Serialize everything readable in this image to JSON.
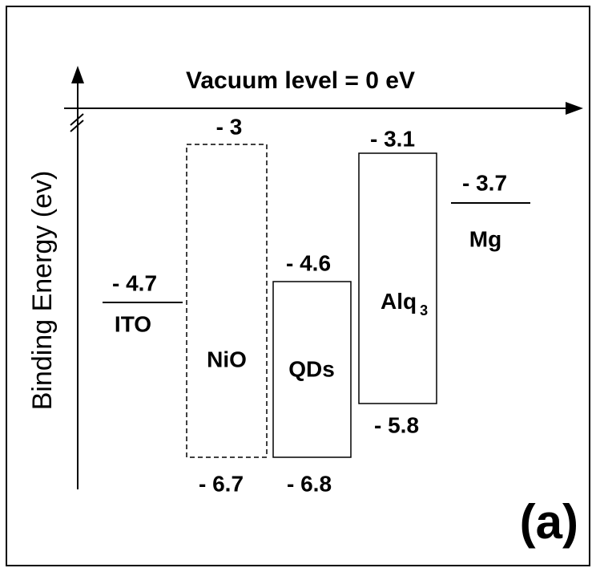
{
  "title": "Vacuum level = 0 eV",
  "y_axis_label": "Binding Energy (ev)",
  "materials": [
    {
      "name": "ITO",
      "level": "- 4.7"
    },
    {
      "name": "NiO",
      "top": "- 3",
      "bottom": "- 6.7"
    },
    {
      "name": "QDs",
      "top": "- 4.6",
      "bottom": "- 6.8"
    },
    {
      "name": "Alq",
      "subscript": "3",
      "top": "- 3.1",
      "bottom": "- 5.8"
    },
    {
      "name": "Mg",
      "level": "- 3.7"
    }
  ],
  "panel_label": "(a)"
}
